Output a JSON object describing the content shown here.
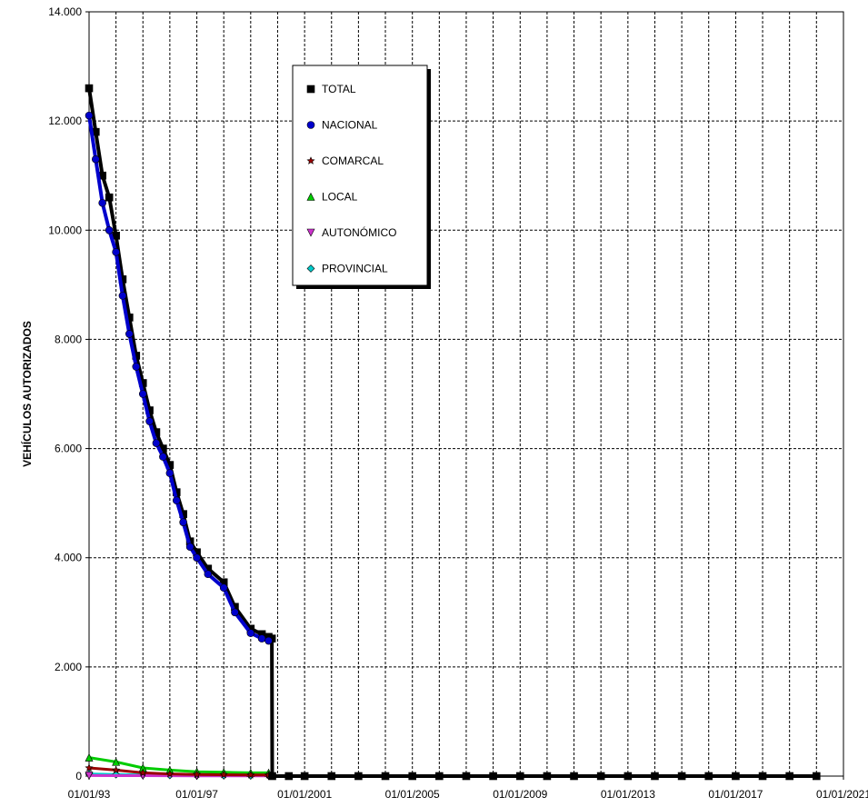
{
  "chart_data": {
    "type": "line",
    "title": "",
    "xlabel": "",
    "ylabel": "VEHÍCULOS  AUTORIZADOS",
    "xlim": [
      "1993-01-01",
      "2021-01-01"
    ],
    "ylim": [
      0,
      14000
    ],
    "x_tick_labels": [
      "01/01/93",
      "01/01/97",
      "01/01/2001",
      "01/01/2005",
      "01/01/2009",
      "01/01/2013",
      "01/01/2017",
      "01/01/2021"
    ],
    "y_tick_labels": [
      "0",
      "2.000",
      "4.000",
      "6.000",
      "8.000",
      "10.000",
      "12.000",
      "14.000"
    ],
    "grid": true,
    "legend_position": "top-center",
    "series": [
      {
        "name": "TOTAL",
        "color": "#000000",
        "marker": "square",
        "points": [
          [
            "1993-01-01",
            12600
          ],
          [
            "1993-04-01",
            11800
          ],
          [
            "1993-07-01",
            11000
          ],
          [
            "1993-10-01",
            10600
          ],
          [
            "1994-01-01",
            9900
          ],
          [
            "1994-04-01",
            9100
          ],
          [
            "1994-07-01",
            8400
          ],
          [
            "1994-10-01",
            7700
          ],
          [
            "1995-01-01",
            7200
          ],
          [
            "1995-04-01",
            6700
          ],
          [
            "1995-07-01",
            6300
          ],
          [
            "1995-10-01",
            6000
          ],
          [
            "1996-01-01",
            5700
          ],
          [
            "1996-04-01",
            5200
          ],
          [
            "1996-07-01",
            4800
          ],
          [
            "1996-10-01",
            4300
          ],
          [
            "1997-01-01",
            4100
          ],
          [
            "1997-06-01",
            3800
          ],
          [
            "1998-01-01",
            3550
          ],
          [
            "1998-06-01",
            3100
          ],
          [
            "1999-01-01",
            2700
          ],
          [
            "1999-06-01",
            2600
          ],
          [
            "1999-09-01",
            2550
          ],
          [
            "1999-10-15",
            2520
          ],
          [
            "1999-10-20",
            0
          ],
          [
            "2000-06-01",
            0
          ],
          [
            "2001-01-01",
            0
          ],
          [
            "2002-01-01",
            0
          ],
          [
            "2003-01-01",
            0
          ],
          [
            "2004-01-01",
            0
          ],
          [
            "2005-01-01",
            0
          ],
          [
            "2006-01-01",
            0
          ],
          [
            "2007-01-01",
            0
          ],
          [
            "2008-01-01",
            0
          ],
          [
            "2009-01-01",
            0
          ],
          [
            "2010-01-01",
            0
          ],
          [
            "2011-01-01",
            0
          ],
          [
            "2012-01-01",
            0
          ],
          [
            "2013-01-01",
            0
          ],
          [
            "2014-01-01",
            0
          ],
          [
            "2015-01-01",
            0
          ],
          [
            "2016-01-01",
            0
          ],
          [
            "2017-01-01",
            0
          ],
          [
            "2018-01-01",
            0
          ],
          [
            "2019-01-01",
            0
          ],
          [
            "2020-01-01",
            0
          ]
        ]
      },
      {
        "name": "NACIONAL",
        "color": "#0000cc",
        "marker": "circle",
        "points": [
          [
            "1993-01-01",
            12100
          ],
          [
            "1993-04-01",
            11300
          ],
          [
            "1993-07-01",
            10500
          ],
          [
            "1993-10-01",
            10000
          ],
          [
            "1994-01-01",
            9600
          ],
          [
            "1994-04-01",
            8800
          ],
          [
            "1994-07-01",
            8100
          ],
          [
            "1994-10-01",
            7500
          ],
          [
            "1995-01-01",
            7000
          ],
          [
            "1995-04-01",
            6500
          ],
          [
            "1995-07-01",
            6100
          ],
          [
            "1995-10-01",
            5850
          ],
          [
            "1996-01-01",
            5550
          ],
          [
            "1996-04-01",
            5050
          ],
          [
            "1996-07-01",
            4650
          ],
          [
            "1996-10-01",
            4200
          ],
          [
            "1997-01-01",
            4000
          ],
          [
            "1997-06-01",
            3700
          ],
          [
            "1998-01-01",
            3450
          ],
          [
            "1998-06-01",
            3000
          ],
          [
            "1999-01-01",
            2620
          ],
          [
            "1999-06-01",
            2520
          ],
          [
            "1999-09-01",
            2480
          ]
        ]
      },
      {
        "name": "COMARCAL",
        "color": "#990000",
        "marker": "star",
        "points": [
          [
            "1993-01-01",
            150
          ],
          [
            "1994-01-01",
            110
          ],
          [
            "1995-01-01",
            60
          ],
          [
            "1996-01-01",
            40
          ],
          [
            "1997-01-01",
            30
          ],
          [
            "1998-01-01",
            25
          ],
          [
            "1999-01-01",
            20
          ],
          [
            "1999-09-01",
            20
          ]
        ]
      },
      {
        "name": "LOCAL",
        "color": "#00cc00",
        "marker": "triangle-up",
        "points": [
          [
            "1993-01-01",
            340
          ],
          [
            "1994-01-01",
            260
          ],
          [
            "1995-01-01",
            150
          ],
          [
            "1996-01-01",
            110
          ],
          [
            "1997-01-01",
            80
          ],
          [
            "1998-01-01",
            70
          ],
          [
            "1999-01-01",
            60
          ],
          [
            "1999-09-01",
            60
          ]
        ]
      },
      {
        "name": "AUTONÓMICO",
        "color": "#cc33cc",
        "marker": "triangle-down",
        "points": [
          [
            "1993-01-01",
            10
          ],
          [
            "1995-01-01",
            8
          ],
          [
            "1997-01-01",
            5
          ],
          [
            "1999-09-01",
            5
          ]
        ]
      },
      {
        "name": "PROVINCIAL",
        "color": "#00cccc",
        "marker": "diamond",
        "points": [
          [
            "1993-01-01",
            40
          ],
          [
            "1994-01-01",
            30
          ],
          [
            "1995-01-01",
            20
          ],
          [
            "1996-01-01",
            15
          ],
          [
            "1997-01-01",
            10
          ],
          [
            "1998-01-01",
            10
          ],
          [
            "1999-01-01",
            8
          ],
          [
            "1999-09-01",
            8
          ]
        ]
      }
    ]
  }
}
